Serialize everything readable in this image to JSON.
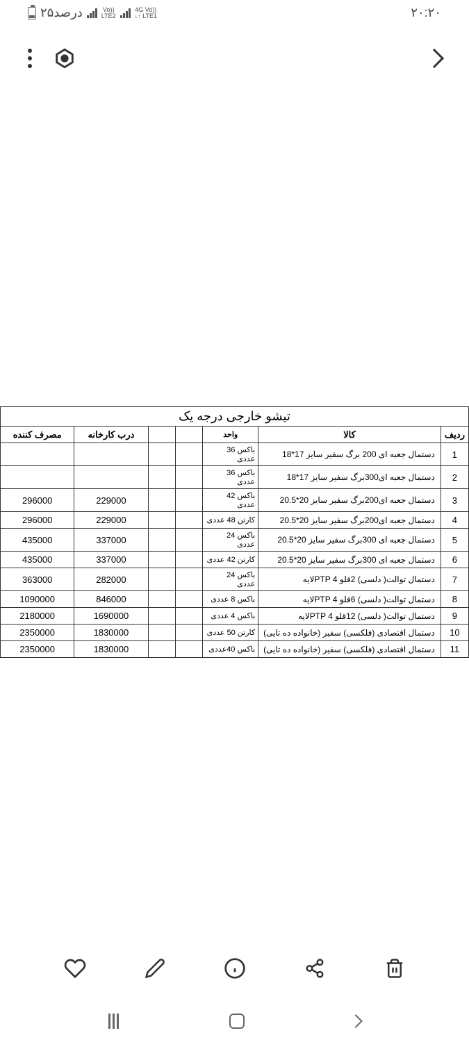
{
  "status": {
    "time": "۲۰:۲۰",
    "battery_text": "۲۵درصد",
    "lte1_top": "Vo))",
    "lte1_bottom": "LTE2",
    "lte2_top": "4G Vo))",
    "lte2_bottom": "↓↑ LTE1"
  },
  "table": {
    "title": "تیشو خارجی درجه یک",
    "headers": {
      "row": "ردیف",
      "product": "کالا",
      "unit": "واحد",
      "blank1": "",
      "blank2": "",
      "factory": "درب کارخانه",
      "consumer": "مصرف کننده"
    },
    "rows": [
      {
        "n": "1",
        "product": "دستمال جعبه ای 200 برگ سفیر سایز 17*18",
        "unit": "باکس 36 عددی",
        "factory": "",
        "consumer": ""
      },
      {
        "n": "2",
        "product": "دستمال جعبه ای300برگ سفیر سایز 17*18",
        "unit": "باکس 36 عددی",
        "factory": "",
        "consumer": ""
      },
      {
        "n": "3",
        "product": "دستمال جعبه ای200برگ سفیر سایز 20*20.5",
        "unit": "باکس 42 عددی",
        "factory": "229000",
        "consumer": "296000"
      },
      {
        "n": "4",
        "product": "دستمال جعبه ای200برگ سفیر سایز 20*20.5",
        "unit": "کارتن 48 عددی",
        "factory": "229000",
        "consumer": "296000"
      },
      {
        "n": "5",
        "product": "دستمال جعبه ای 300برگ سفیر سایز 20*20.5",
        "unit": "باکس 24 عددی",
        "factory": "337000",
        "consumer": "435000"
      },
      {
        "n": "6",
        "product": "دستمال جعبه ای 300برگ سفیر سایز 20*20.5",
        "unit": "کارتن 42 عددی",
        "factory": "337000",
        "consumer": "435000"
      },
      {
        "n": "7",
        "product": "دستمال توالت( دلسی) 2قلو PTP 4لایه",
        "unit": "باکس 24 عددی",
        "factory": "282000",
        "consumer": "363000"
      },
      {
        "n": "8",
        "product": "دستمال توالت( دلسی) 6قلو PTP 4لایه",
        "unit": "باکس 8 عددی",
        "factory": "846000",
        "consumer": "1090000"
      },
      {
        "n": "9",
        "product": "دستمال توالت( دلسی) 12قلو PTP 4لایه",
        "unit": "باکس 4 عددی",
        "factory": "1690000",
        "consumer": "2180000"
      },
      {
        "n": "10",
        "product": "دستمال اقتصادی (فلکسی) سفیر (خانواده ده تایی)",
        "unit": "کارتن 50 عددی",
        "factory": "1830000",
        "consumer": "2350000"
      },
      {
        "n": "11",
        "product": "دستمال اقتصادی (فلکسی) سفیر (خانواده ده تایی)",
        "unit": "باکس 40عددی",
        "factory": "1830000",
        "consumer": "2350000"
      }
    ]
  }
}
